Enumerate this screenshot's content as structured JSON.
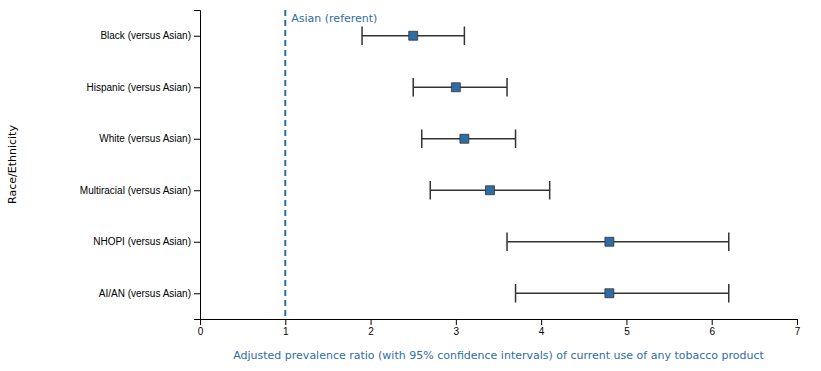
{
  "chart_data": {
    "type": "errorbar",
    "orientation": "horizontal",
    "categories": [
      "Black (versus Asian)",
      "Hispanic (versus Asian)",
      "White (versus Asian)",
      "Multiracial (versus Asian)",
      "NHOPI (versus Asian)",
      "AI/AN (versus Asian)"
    ],
    "values": [
      2.5,
      3.0,
      3.1,
      3.4,
      4.8,
      4.8
    ],
    "ci_lower": [
      1.9,
      2.5,
      2.6,
      2.7,
      3.6,
      3.7
    ],
    "ci_upper": [
      3.1,
      3.6,
      3.7,
      4.1,
      6.2,
      6.2
    ],
    "reference_line": 1.0,
    "reference_label": "Asian (referent)",
    "xlabel": "Adjusted prevalence ratio (with 95% confidence intervals) of current use of any tobacco product",
    "ylabel": "Race/Ethnicity",
    "xlim": [
      0,
      7
    ],
    "xticks": [
      0,
      1,
      2,
      3,
      4,
      5,
      6,
      7
    ],
    "color": "#2E6DA4",
    "marker": "square",
    "grid": false
  }
}
